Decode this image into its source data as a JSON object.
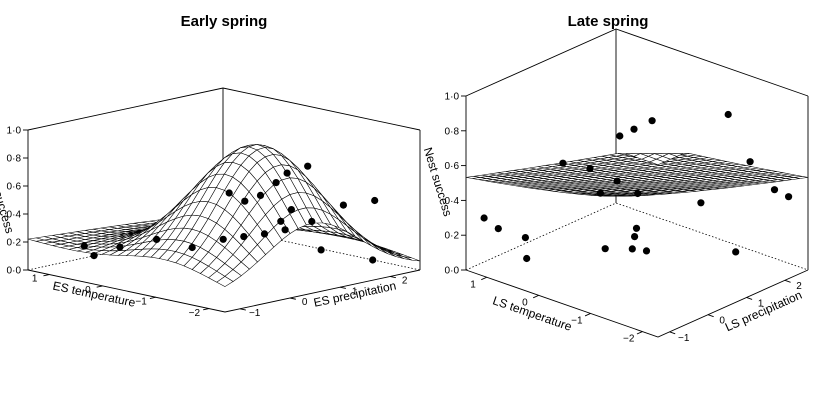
{
  "chart_data": [
    {
      "type": "surface",
      "title": "Early spring",
      "xlabel": "ES temperature",
      "ylabel": "ES precipitation",
      "zlabel": "Nest success",
      "x_ticks": [
        "1",
        "0",
        "−1",
        "−2"
      ],
      "y_ticks": [
        "−1",
        "0",
        "1",
        "2"
      ],
      "z_ticks": [
        "0·0",
        "0·2",
        "0·4",
        "0·6",
        "0·8",
        "1·0"
      ],
      "xlim": [
        -2.3,
        1.4
      ],
      "ylim": [
        -1.3,
        2.6
      ],
      "zlim": [
        0,
        1
      ],
      "points": [
        {
          "x": 1.0,
          "y": -0.6,
          "z": 0.15
        },
        {
          "x": 1.1,
          "y": -0.3,
          "z": 0.05
        },
        {
          "x": 0.8,
          "y": -0.1,
          "z": 0.12
        },
        {
          "x": 0.3,
          "y": 0.1,
          "z": 0.2
        },
        {
          "x": 0.1,
          "y": 0.6,
          "z": 0.12
        },
        {
          "x": -0.2,
          "y": 0.9,
          "z": 0.18
        },
        {
          "x": -0.4,
          "y": 1.1,
          "z": 0.2
        },
        {
          "x": -0.6,
          "y": 1.3,
          "z": 0.22
        },
        {
          "x": -0.8,
          "y": 1.5,
          "z": 0.25
        },
        {
          "x": -0.5,
          "y": 0.7,
          "z": 0.55
        },
        {
          "x": -0.7,
          "y": 0.8,
          "z": 0.5
        },
        {
          "x": -0.9,
          "y": 0.9,
          "z": 0.55
        },
        {
          "x": -1.1,
          "y": 1.0,
          "z": 0.65
        },
        {
          "x": -1.2,
          "y": 1.2,
          "z": 0.45
        },
        {
          "x": -1.0,
          "y": 1.2,
          "z": 0.35
        },
        {
          "x": -1.4,
          "y": 0.9,
          "z": 0.75
        },
        {
          "x": -1.6,
          "y": 1.1,
          "z": 0.8
        },
        {
          "x": -1.3,
          "y": 1.5,
          "z": 0.35
        },
        {
          "x": -1.8,
          "y": 1.6,
          "z": 0.5
        },
        {
          "x": -2.2,
          "y": 1.8,
          "z": 0.55
        },
        {
          "x": -1.1,
          "y": 1.9,
          "z": 0.1
        },
        {
          "x": -1.6,
          "y": 2.4,
          "z": 0.03
        }
      ]
    },
    {
      "type": "surface",
      "title": "Late spring",
      "xlabel": "LS temperature",
      "ylabel": "LS precipitation",
      "zlabel": "Nest success",
      "x_ticks": [
        "1",
        "0",
        "−1",
        "−2"
      ],
      "y_ticks": [
        "−1",
        "0",
        "1",
        "2"
      ],
      "z_ticks": [
        "0·0",
        "0·2",
        "0·4",
        "0·6",
        "0·8",
        "1·0"
      ],
      "xlim": [
        -2.3,
        1.4
      ],
      "ylim": [
        -1.3,
        2.6
      ],
      "zlim": [
        0,
        1
      ],
      "points": [
        {
          "x": 1.2,
          "y": -1.1,
          "z": 0.3
        },
        {
          "x": 1.0,
          "y": -1.0,
          "z": 0.25
        },
        {
          "x": 0.7,
          "y": -0.7,
          "z": 0.2
        },
        {
          "x": 0.6,
          "y": -0.8,
          "z": 0.1
        },
        {
          "x": 0.2,
          "y": -0.4,
          "z": 0.65
        },
        {
          "x": -0.1,
          "y": -0.1,
          "z": 0.62
        },
        {
          "x": -0.3,
          "y": -0.1,
          "z": 0.5
        },
        {
          "x": -0.4,
          "y": 0.2,
          "z": 0.55
        },
        {
          "x": -0.6,
          "y": 0.0,
          "z": 0.85
        },
        {
          "x": -0.8,
          "y": 0.1,
          "z": 0.9
        },
        {
          "x": -1.0,
          "y": 0.3,
          "z": 0.95
        },
        {
          "x": -0.7,
          "y": 0.3,
          "z": 0.3
        },
        {
          "x": -0.5,
          "y": 0.6,
          "z": 0.45
        },
        {
          "x": 0.2,
          "y": 0.7,
          "z": 0.05
        },
        {
          "x": -0.1,
          "y": 1.0,
          "z": 0.05
        },
        {
          "x": -0.3,
          "y": 1.1,
          "z": 0.05
        },
        {
          "x": -1.2,
          "y": 1.3,
          "z": 0.4
        },
        {
          "x": -1.8,
          "y": 1.2,
          "z": 0.98
        },
        {
          "x": -2.0,
          "y": 1.5,
          "z": 0.7
        },
        {
          "x": -2.1,
          "y": 2.0,
          "z": 0.5
        },
        {
          "x": -2.0,
          "y": 2.5,
          "z": 0.4
        },
        {
          "x": 0.3,
          "y": 1.6,
          "z": 0.02
        },
        {
          "x": -1.5,
          "y": 1.8,
          "z": 0.1
        }
      ]
    }
  ]
}
